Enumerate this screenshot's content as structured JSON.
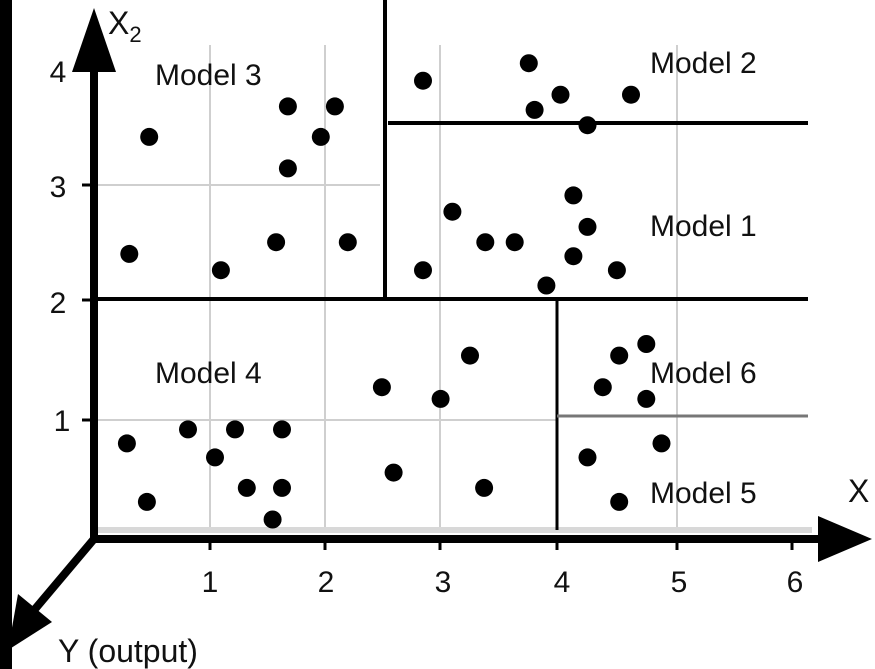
{
  "diagram": {
    "x_axis_label": "X",
    "x2_axis_main": "X",
    "x2_axis_sub": "2",
    "y_axis_label": "Y (output)",
    "x_ticks": [
      "1",
      "2",
      "3",
      "4",
      "5",
      "6"
    ],
    "y_ticks": [
      "1",
      "2",
      "3",
      "4"
    ],
    "regions": [
      {
        "label": "Model 1"
      },
      {
        "label": "Model 2"
      },
      {
        "label": "Model 3"
      },
      {
        "label": "Model 4"
      },
      {
        "label": "Model 5"
      },
      {
        "label": "Model 6"
      }
    ],
    "partition_boundaries": {
      "x2_split_main": 2,
      "x1_split_upper": 2.45,
      "x2_split_upper_right": 3.5,
      "x1_split_lower": 3.98,
      "x2_split_lower_right": 1
    },
    "points": [
      [
        0.3,
        2.42
      ],
      [
        0.47,
        3.42
      ],
      [
        1.08,
        2.28
      ],
      [
        1.55,
        2.52
      ],
      [
        1.65,
        3.15
      ],
      [
        1.65,
        3.68
      ],
      [
        1.93,
        3.42
      ],
      [
        2.05,
        3.68
      ],
      [
        2.16,
        2.52
      ],
      [
        2.8,
        3.9
      ],
      [
        3.7,
        4.05
      ],
      [
        3.75,
        3.65
      ],
      [
        3.97,
        3.78
      ],
      [
        4.2,
        3.52
      ],
      [
        4.57,
        3.78
      ],
      [
        2.8,
        2.28
      ],
      [
        3.05,
        2.78
      ],
      [
        3.33,
        2.52
      ],
      [
        3.58,
        2.52
      ],
      [
        3.85,
        2.15
      ],
      [
        4.08,
        2.4
      ],
      [
        4.08,
        2.92
      ],
      [
        4.2,
        2.65
      ],
      [
        4.45,
        2.28
      ],
      [
        0.28,
        0.8
      ],
      [
        0.45,
        0.3
      ],
      [
        0.8,
        0.92
      ],
      [
        1.03,
        0.68
      ],
      [
        1.2,
        0.92
      ],
      [
        1.3,
        0.42
      ],
      [
        1.52,
        0.15
      ],
      [
        1.6,
        0.42
      ],
      [
        1.6,
        0.92
      ],
      [
        2.45,
        1.28
      ],
      [
        2.55,
        0.55
      ],
      [
        2.95,
        1.18
      ],
      [
        3.2,
        1.55
      ],
      [
        3.32,
        0.42
      ],
      [
        4.2,
        0.68
      ],
      [
        4.33,
        1.28
      ],
      [
        4.47,
        1.55
      ],
      [
        4.47,
        0.3
      ],
      [
        4.7,
        1.65
      ],
      [
        4.7,
        1.18
      ],
      [
        4.83,
        0.8
      ]
    ]
  }
}
